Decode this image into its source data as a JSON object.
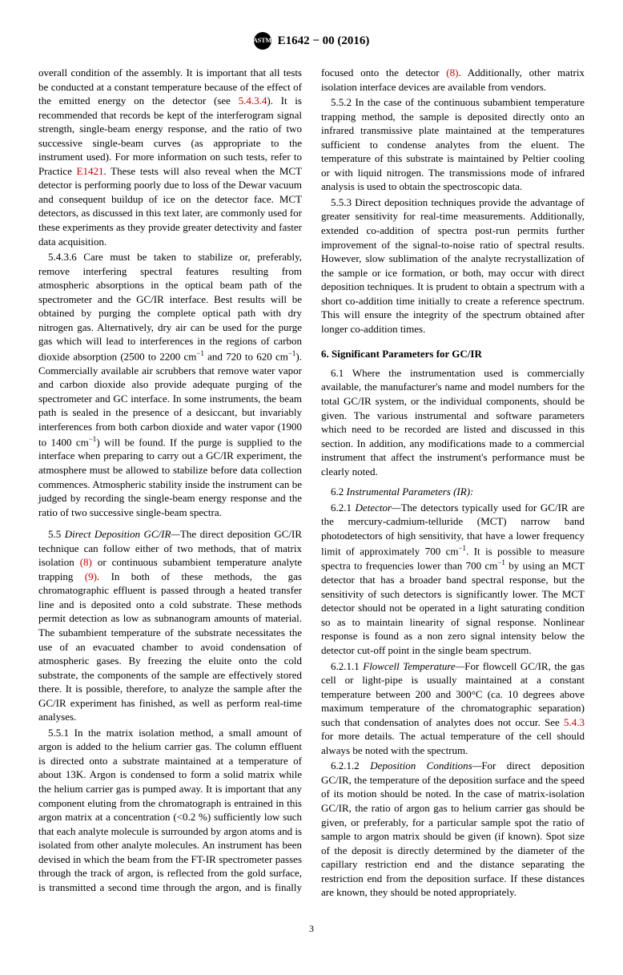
{
  "header": {
    "logo_text": "ASTM",
    "doc_id": "E1642 − 00 (2016)"
  },
  "page_number": "3",
  "refs": {
    "r5434": "5.4.3.4",
    "rE1421": "E1421",
    "r8a": "(8)",
    "r9": "(9)",
    "r8b": "(8)",
    "r543": "5.4.3"
  },
  "body": {
    "p1a": "overall condition of the assembly. It is important that all tests be conducted at a constant temperature because of the effect of the emitted energy on the detector (see ",
    "p1b": "). It is recommended that records be kept of the interferogram signal strength, single-beam energy response, and the ratio of two successive single-beam curves (as appropriate to the instrument used). For more information on such tests, refer to Practice ",
    "p1c": ". These tests will also reveal when the MCT detector is performing poorly due to loss of the Dewar vacuum and consequent buildup of ice on the detector face. MCT detectors, as discussed in this text later, are commonly used for these experiments as they provide greater detectivity and faster data acquisition.",
    "p2": "5.4.3.6 Care must be taken to stabilize or, preferably, remove interfering spectral features resulting from atmospheric absorptions in the optical beam path of the spectrometer and the GC/IR interface. Best results will be obtained by purging the complete optical path with dry nitrogen gas. Alternatively, dry air can be used for the purge gas which will lead to interferences in the regions of carbon dioxide absorption (2500 to 2200 cm",
    "p2b": " and 720 to 620 cm",
    "p2c": "). Commercially available air scrubbers that remove water vapor and carbon dioxide also provide adequate purging of the spectrometer and GC interface. In some instruments, the beam path is sealed in the presence of a desiccant, but invariably interferences from both carbon dioxide and water vapor (1900 to 1400 cm",
    "p2d": ") will be found. If the purge is supplied to the interface when preparing to carry out a GC/IR experiment, the atmosphere must be allowed to stabilize before data collection commences. Atmospheric stability inside the instrument can be judged by recording the single-beam energy response and the ratio of two successive single-beam spectra.",
    "p3_lead": "5.5 ",
    "p3_title": "Direct Deposition GC/IR—",
    "p3a": "The direct deposition GC/IR technique can follow either of two methods, that of matrix isolation ",
    "p3b": " or continuous subambient temperature analyte trapping ",
    "p3c": ". In both of these methods, the gas chromatographic effluent is passed through a heated transfer line and is deposited onto a cold substrate. These methods permit detection as low as subnanogram amounts of material. The subambient temperature of the substrate necessitates the use of an evacuated chamber to avoid condensation of atmospheric gases. By freezing the eluite onto the cold substrate, the components of the sample are effectively stored there. It is possible, therefore, to analyze the sample after the GC/IR experiment has finished, as well as perform real-time analyses.",
    "p4a": "5.5.1 In the matrix isolation method, a small amount of argon is added to the helium carrier gas. The column effluent is directed onto a substrate maintained at a temperature of about 13K. Argon is condensed to form a solid matrix while the helium carrier gas is pumped away. It is important that any component eluting from the chromatograph is entrained in this argon matrix at a concentration (<0.2 %) sufficiently low such that each analyte molecule is surrounded by argon atoms and is isolated from other analyte molecules. An instrument has been devised in which the beam from the FT-IR spectrometer passes through the track of argon, is reflected from the gold surface, is transmitted a second time through the argon, and is finally focused onto the detector ",
    "p4b": ". Additionally, other matrix isolation interface devices are available from vendors.",
    "p5": "5.5.2 In the case of the continuous subambient temperature trapping method, the sample is deposited directly onto an infrared transmissive plate maintained at the temperatures sufficient to condense analytes from the eluent. The temperature of this substrate is maintained by Peltier cooling or with liquid nitrogen. The transmissions mode of infrared analysis is used to obtain the spectroscopic data.",
    "p6": "5.5.3 Direct deposition techniques provide the advantage of greater sensitivity for real-time measurements. Additionally, extended co-addition of spectra post-run permits further improvement of the signal-to-noise ratio of spectral results. However, slow sublimation of the analyte recrystallization of the sample or ice formation, or both, may occur with direct deposition techniques. It is prudent to obtain a spectrum with a short co-addition time initially to create a reference spectrum. This will ensure the integrity of the spectrum obtained after longer co-addition times.",
    "sec6": "6.  Significant Parameters for GC/IR",
    "p7": "6.1 Where the instrumentation used is commercially available, the manufacturer's name and model numbers for the total GC/IR system, or the individual components, should be given. The various instrumental and software parameters which need to be recorded are listed and discussed in this section. In addition, any modifications made to a commercial instrument that affect the instrument's performance must be clearly noted.",
    "p8_lead": "6.2 ",
    "p8_title": "Instrumental Parameters (IR):",
    "p9_lead": "6.2.1 ",
    "p9_title": "Detector—",
    "p9a": "The detectors typically used for GC/IR are the mercury-cadmium-telluride (MCT) narrow band photodetectors of high sensitivity, that have a lower frequency limit of approximately 700 cm",
    "p9b": ". It is possible to measure spectra to frequencies lower than 700 cm",
    "p9c": " by using an MCT detector that has a broader band spectral response, but the sensitivity of such detectors is significantly lower. The MCT detector should not be operated in a light saturating condition so as to maintain linearity of signal response. Nonlinear response is found as a non zero signal intensity below the detector cut-off point in the single beam spectrum.",
    "p10_lead": "6.2.1.1 ",
    "p10_title": "Flowcell Temperature—",
    "p10a": "For flowcell GC/IR, the gas cell or light-pipe is usually maintained at a constant temperature between 200 and 300°C (ca. 10 degrees above maximum temperature of the chromatographic separation) such that condensation of analytes does not occur. See ",
    "p10b": " for more details. The actual temperature of the cell should always be noted with the spectrum.",
    "p11_lead": "6.2.1.2 ",
    "p11_title": "Deposition Conditions—",
    "p11a": "For direct deposition GC/IR, the temperature of the deposition surface and the speed of its motion should be noted. In the case of matrix-isolation GC/IR, the ratio of argon gas to helium carrier gas should be given, or preferably, for a particular sample spot the ratio of sample to argon matrix should be given (if known). Spot size of the deposit is directly determined by the diameter of the capillary restriction end and the distance separating the restriction end from the deposition surface. If these distances are known, they should be noted appropriately."
  }
}
